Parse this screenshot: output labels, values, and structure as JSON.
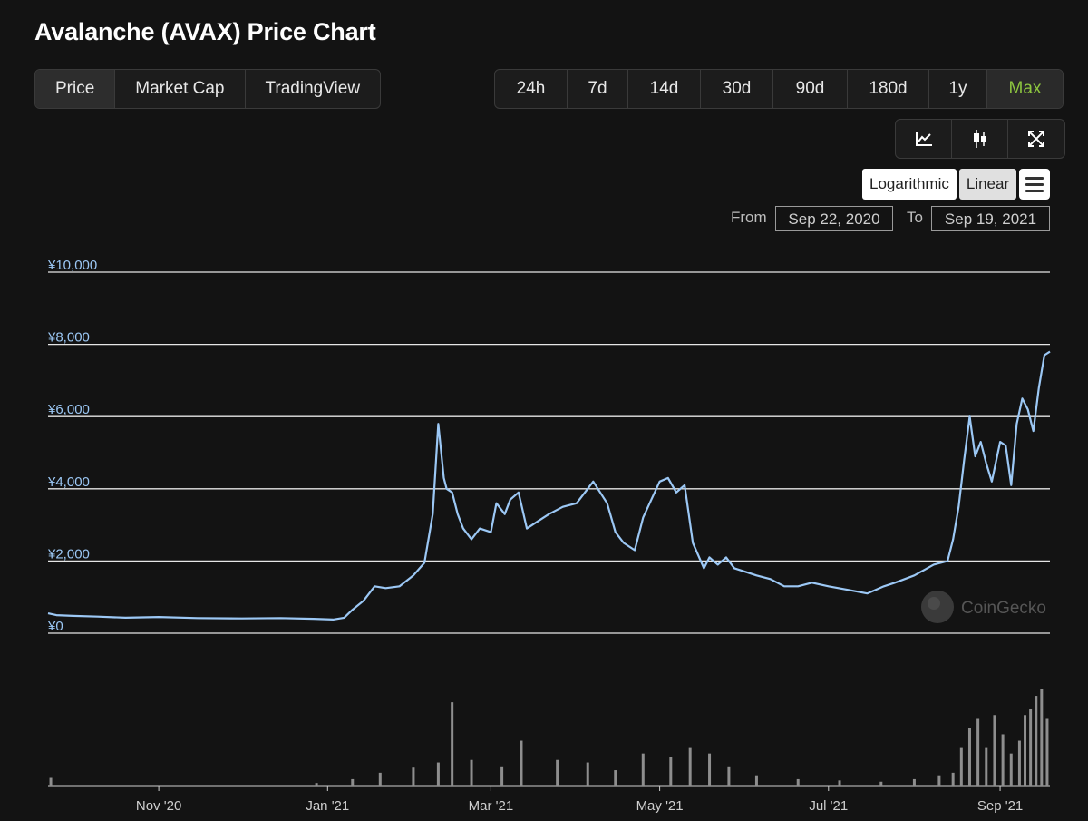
{
  "title": "Avalanche (AVAX) Price Chart",
  "view_tabs": [
    "Price",
    "Market Cap",
    "TradingView"
  ],
  "range_tabs": [
    "24h",
    "7d",
    "14d",
    "30d",
    "90d",
    "180d",
    "1y",
    "Max"
  ],
  "scale": {
    "log_label": "Logarithmic",
    "linear_label": "Linear",
    "selected": "Linear"
  },
  "icons": [
    "line-chart-icon",
    "candlestick-icon",
    "fullscreen-icon",
    "menu-icon"
  ],
  "date_range": {
    "from_label": "From",
    "from_value": "Sep 22, 2020",
    "to_label": "To",
    "to_value": "Sep 19, 2021"
  },
  "watermark": "CoinGecko",
  "colors": {
    "line": "#9cc8f5",
    "axis_label": "#9cc8f5",
    "active_range": "#8dc63f",
    "volume": "#8e8e8e"
  },
  "chart_data": {
    "type": "line",
    "y_unit": "¥",
    "ylim": [
      0,
      10000
    ],
    "y_ticks": [
      "¥10,000",
      "¥8,000",
      "¥6,000",
      "¥4,000",
      "¥2,000",
      "¥0"
    ],
    "y_tick_values": [
      10000,
      8000,
      6000,
      4000,
      2000,
      0
    ],
    "x_ticks": [
      "Nov '20",
      "Jan '21",
      "Mar '21",
      "May '21",
      "Jul '21",
      "Sep '21"
    ],
    "x_tick_dates": [
      "2020-11-01",
      "2021-01-01",
      "2021-03-01",
      "2021-05-01",
      "2021-07-01",
      "2021-09-01"
    ],
    "x_range": [
      "2020-09-22",
      "2021-09-19"
    ],
    "grid": true,
    "series": [
      {
        "x": [
          "2020-09-22",
          "2020-09-25",
          "2020-10-01",
          "2020-10-10",
          "2020-10-20",
          "2020-11-01",
          "2020-11-15",
          "2020-12-01",
          "2020-12-15",
          "2020-12-27",
          "2021-01-03",
          "2021-01-07",
          "2021-01-10",
          "2021-01-14",
          "2021-01-18",
          "2021-01-22",
          "2021-01-27",
          "2021-02-01",
          "2021-02-05",
          "2021-02-08",
          "2021-02-10",
          "2021-02-12",
          "2021-02-13",
          "2021-02-15",
          "2021-02-17",
          "2021-02-19",
          "2021-02-22",
          "2021-02-25",
          "2021-03-01",
          "2021-03-03",
          "2021-03-06",
          "2021-03-08",
          "2021-03-11",
          "2021-03-14",
          "2021-03-18",
          "2021-03-22",
          "2021-03-27",
          "2021-04-01",
          "2021-04-07",
          "2021-04-12",
          "2021-04-15",
          "2021-04-18",
          "2021-04-22",
          "2021-04-25",
          "2021-04-28",
          "2021-05-01",
          "2021-05-04",
          "2021-05-07",
          "2021-05-10",
          "2021-05-13",
          "2021-05-17",
          "2021-05-19",
          "2021-05-22",
          "2021-05-25",
          "2021-05-28",
          "2021-06-01",
          "2021-06-05",
          "2021-06-10",
          "2021-06-15",
          "2021-06-20",
          "2021-06-25",
          "2021-07-01",
          "2021-07-08",
          "2021-07-15",
          "2021-07-21",
          "2021-07-25",
          "2021-08-01",
          "2021-08-08",
          "2021-08-13",
          "2021-08-15",
          "2021-08-17",
          "2021-08-19",
          "2021-08-21",
          "2021-08-23",
          "2021-08-25",
          "2021-08-27",
          "2021-08-29",
          "2021-09-01",
          "2021-09-03",
          "2021-09-05",
          "2021-09-07",
          "2021-09-09",
          "2021-09-11",
          "2021-09-13",
          "2021-09-15",
          "2021-09-17",
          "2021-09-19"
        ],
        "values": [
          550,
          500,
          480,
          460,
          430,
          450,
          420,
          410,
          420,
          400,
          380,
          430,
          650,
          900,
          1300,
          1250,
          1300,
          1600,
          1950,
          3300,
          5800,
          4300,
          4000,
          3900,
          3300,
          2900,
          2600,
          2900,
          2800,
          3600,
          3300,
          3700,
          3900,
          2900,
          3100,
          3300,
          3500,
          3600,
          4200,
          3600,
          2800,
          2500,
          2300,
          3200,
          3700,
          4200,
          4300,
          3900,
          4100,
          2500,
          1800,
          2100,
          1900,
          2100,
          1800,
          1700,
          1600,
          1500,
          1300,
          1300,
          1400,
          1300,
          1200,
          1100,
          1300,
          1400,
          1600,
          1900,
          2000,
          2600,
          3500,
          4800,
          6000,
          4900,
          5300,
          4700,
          4200,
          5300,
          5200,
          4100,
          5800,
          6500,
          6200,
          5600,
          6800,
          7700,
          7800
        ]
      }
    ],
    "volume_series": {
      "x": [
        "2020-09-23",
        "2020-12-28",
        "2021-01-10",
        "2021-01-20",
        "2021-02-01",
        "2021-02-10",
        "2021-02-15",
        "2021-02-22",
        "2021-03-05",
        "2021-03-12",
        "2021-03-25",
        "2021-04-05",
        "2021-04-15",
        "2021-04-25",
        "2021-05-05",
        "2021-05-12",
        "2021-05-19",
        "2021-05-26",
        "2021-06-05",
        "2021-06-20",
        "2021-07-05",
        "2021-07-20",
        "2021-08-01",
        "2021-08-10",
        "2021-08-15",
        "2021-08-18",
        "2021-08-21",
        "2021-08-24",
        "2021-08-27",
        "2021-08-30",
        "2021-09-02",
        "2021-09-05",
        "2021-09-08",
        "2021-09-10",
        "2021-09-12",
        "2021-09-14",
        "2021-09-16",
        "2021-09-18"
      ],
      "values": [
        6,
        2,
        5,
        10,
        14,
        18,
        65,
        20,
        15,
        35,
        20,
        18,
        12,
        25,
        22,
        30,
        25,
        15,
        8,
        5,
        4,
        3,
        5,
        8,
        10,
        30,
        45,
        52,
        30,
        55,
        40,
        25,
        35,
        55,
        60,
        70,
        75,
        52
      ]
    }
  }
}
